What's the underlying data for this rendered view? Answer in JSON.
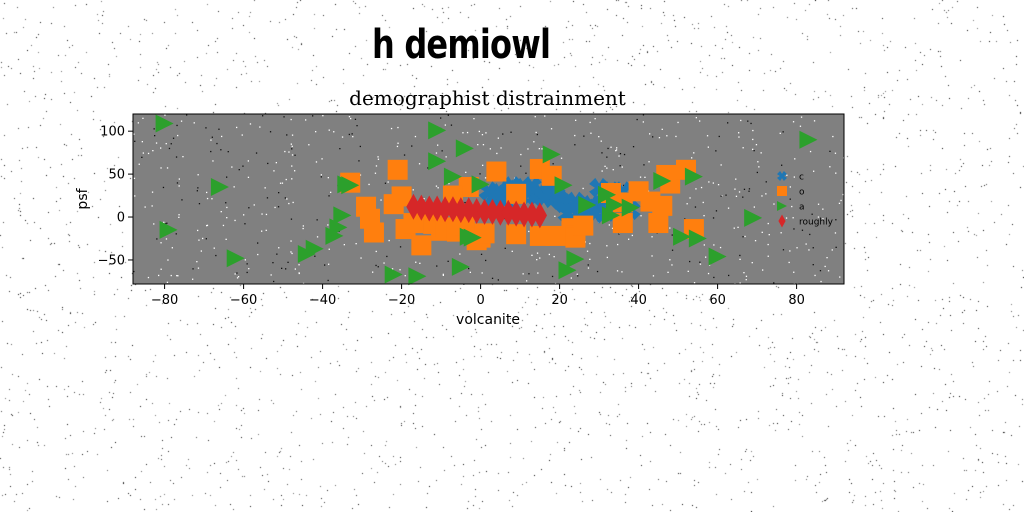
{
  "suptitle": "h demiowl",
  "chart_data": {
    "type": "scatter",
    "title": "demographist distrainment",
    "xlabel": "volcanite",
    "ylabel": "psf",
    "xlim": [
      -88,
      92
    ],
    "ylim": [
      -78,
      120
    ],
    "xticks": [
      -80,
      -60,
      -40,
      -20,
      0,
      20,
      40,
      60,
      80
    ],
    "yticks": [
      -50,
      0,
      50,
      100
    ],
    "grid": false,
    "background": "#808080",
    "legend_position": "right",
    "series": [
      {
        "name": "c",
        "marker": "x-filled",
        "color": "#1f77b4",
        "points": [
          [
            3,
            22
          ],
          [
            5,
            28
          ],
          [
            7,
            30
          ],
          [
            9,
            32
          ],
          [
            11,
            34
          ],
          [
            12,
            28
          ],
          [
            14,
            24
          ],
          [
            15,
            30
          ],
          [
            17,
            28
          ],
          [
            19,
            26
          ],
          [
            20,
            20
          ],
          [
            21,
            16
          ],
          [
            23,
            12
          ],
          [
            25,
            6
          ],
          [
            27,
            10
          ],
          [
            28,
            14
          ],
          [
            30,
            12
          ],
          [
            31,
            26
          ],
          [
            33,
            30
          ],
          [
            34,
            22
          ],
          [
            35,
            16
          ],
          [
            36,
            30
          ],
          [
            37,
            20
          ],
          [
            38,
            8
          ],
          [
            32,
            6
          ],
          [
            29,
            4
          ],
          [
            26,
            2
          ],
          [
            22,
            4
          ],
          [
            10,
            24
          ],
          [
            6,
            18
          ],
          [
            4,
            26
          ],
          [
            13,
            36
          ],
          [
            18,
            34
          ],
          [
            16,
            22
          ],
          [
            24,
            18
          ],
          [
            34,
            8
          ],
          [
            36,
            4
          ],
          [
            30,
            34
          ],
          [
            8,
            36
          ],
          [
            2,
            30
          ]
        ]
      },
      {
        "name": "o",
        "marker": "square",
        "color": "#ff7f0e",
        "points": [
          [
            -33,
            40
          ],
          [
            -29,
            12
          ],
          [
            -28,
            -2
          ],
          [
            -27,
            -18
          ],
          [
            -21,
            55
          ],
          [
            -22,
            15
          ],
          [
            -20,
            24
          ],
          [
            -19,
            -14
          ],
          [
            -17,
            -7
          ],
          [
            -15,
            -33
          ],
          [
            -12,
            -8
          ],
          [
            -10,
            -16
          ],
          [
            -9,
            -12
          ],
          [
            -6,
            -17
          ],
          [
            -4,
            -10
          ],
          [
            -3,
            35
          ],
          [
            -1,
            -27
          ],
          [
            0,
            -24
          ],
          [
            1,
            -19
          ],
          [
            4,
            53
          ],
          [
            9,
            -20
          ],
          [
            9,
            27
          ],
          [
            15,
            -22
          ],
          [
            15,
            56
          ],
          [
            18,
            48
          ],
          [
            19,
            -22
          ],
          [
            23,
            -13
          ],
          [
            24,
            -22
          ],
          [
            24,
            -24
          ],
          [
            26,
            -10
          ],
          [
            33,
            28
          ],
          [
            36,
            -7
          ],
          [
            36,
            17
          ],
          [
            40,
            30
          ],
          [
            43,
            18
          ],
          [
            45,
            -7
          ],
          [
            46,
            13
          ],
          [
            47,
            49
          ],
          [
            48,
            39
          ],
          [
            52,
            55
          ],
          [
            54,
            -14
          ],
          [
            -7,
            25
          ]
        ]
      },
      {
        "name": "a",
        "marker": "triangle-right",
        "color": "#2ca02c",
        "points": [
          [
            -80,
            109
          ],
          [
            -79,
            -15
          ],
          [
            -66,
            35
          ],
          [
            -62,
            -48
          ],
          [
            -44,
            -43
          ],
          [
            -42,
            -37
          ],
          [
            -37,
            -22
          ],
          [
            -36,
            -12
          ],
          [
            -35,
            2
          ],
          [
            -34,
            38
          ],
          [
            -33,
            37
          ],
          [
            -22,
            -67
          ],
          [
            -16,
            -69
          ],
          [
            -11,
            101
          ],
          [
            -11,
            65
          ],
          [
            -7,
            47
          ],
          [
            -5,
            -58
          ],
          [
            -4,
            80
          ],
          [
            -3,
            -23
          ],
          [
            -2,
            -24
          ],
          [
            0,
            38
          ],
          [
            18,
            73
          ],
          [
            21,
            37
          ],
          [
            22,
            -62
          ],
          [
            24,
            -49
          ],
          [
            27,
            14
          ],
          [
            32,
            26
          ],
          [
            33,
            2
          ],
          [
            34,
            14
          ],
          [
            38,
            11
          ],
          [
            46,
            42
          ],
          [
            51,
            -23
          ],
          [
            54,
            47
          ],
          [
            55,
            -25
          ],
          [
            60,
            -46
          ],
          [
            69,
            -1
          ],
          [
            83,
            90
          ]
        ]
      },
      {
        "name": "roughly",
        "marker": "thin-diamond",
        "color": "#d62728",
        "points": [
          [
            -17,
            12
          ],
          [
            -15,
            11
          ],
          [
            -13,
            10
          ],
          [
            -11,
            10
          ],
          [
            -9,
            9
          ],
          [
            -7,
            9
          ],
          [
            -5,
            8
          ],
          [
            -3,
            8
          ],
          [
            -1,
            7
          ],
          [
            1,
            6
          ],
          [
            3,
            6
          ],
          [
            5,
            5
          ],
          [
            7,
            5
          ],
          [
            9,
            4
          ],
          [
            11,
            3
          ],
          [
            13,
            3
          ],
          [
            15,
            2
          ]
        ]
      }
    ]
  }
}
